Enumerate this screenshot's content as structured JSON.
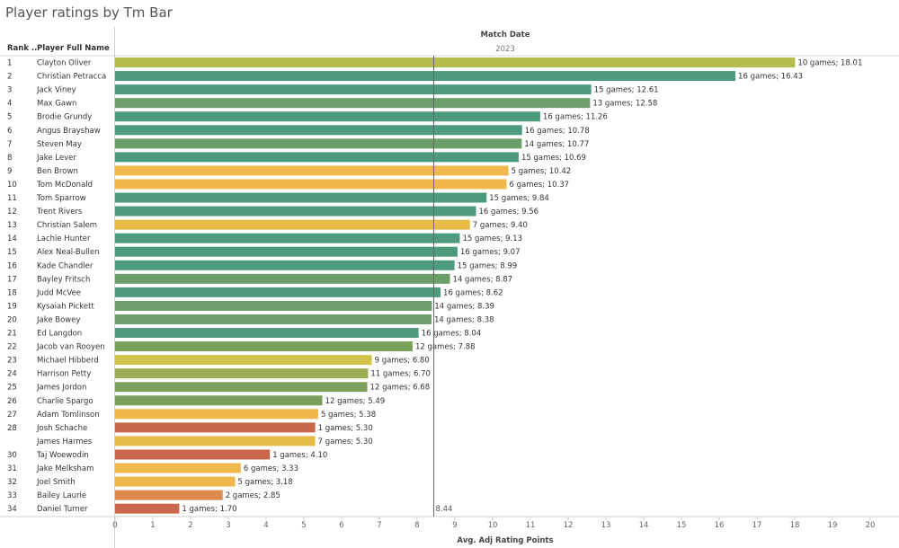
{
  "chart_data": {
    "type": "bar",
    "title": "Player ratings by Tm Bar",
    "row_header_rank": "Rank ..",
    "row_header_name": "Player Full Name",
    "column_header": "Match Date",
    "column_value": "2023",
    "xlabel": "Avg. Adj Rating Points",
    "xlim": [
      0,
      21
    ],
    "xticks": [
      0,
      1,
      2,
      3,
      4,
      5,
      6,
      7,
      8,
      9,
      10,
      11,
      12,
      13,
      14,
      15,
      16,
      17,
      18,
      19,
      20
    ],
    "reference_line": {
      "value": 8.44,
      "label": "8.44"
    },
    "rows": [
      {
        "rank": "1",
        "name": "Clayton Oliver",
        "value": 18.01,
        "label": "10 games; 18.01",
        "color": "#b5bd4c"
      },
      {
        "rank": "2",
        "name": "Christian Petracca",
        "value": 16.43,
        "label": "16 games; 16.43",
        "color": "#4e9a7c"
      },
      {
        "rank": "3",
        "name": "Jack Viney",
        "value": 12.61,
        "label": "15 games; 12.61",
        "color": "#4e9a7c"
      },
      {
        "rank": "4",
        "name": "Max Gawn",
        "value": 12.58,
        "label": "13 games; 12.58",
        "color": "#6b9e68"
      },
      {
        "rank": "5",
        "name": "Brodie Grundy",
        "value": 11.26,
        "label": "16 games; 11.26",
        "color": "#4e9a7c"
      },
      {
        "rank": "6",
        "name": "Angus Brayshaw",
        "value": 10.78,
        "label": "16 games; 10.78",
        "color": "#4e9a7c"
      },
      {
        "rank": "7",
        "name": "Steven May",
        "value": 10.77,
        "label": "14 games; 10.77",
        "color": "#6b9e68"
      },
      {
        "rank": "8",
        "name": "Jake Lever",
        "value": 10.69,
        "label": "15 games; 10.69",
        "color": "#4e9a7c"
      },
      {
        "rank": "9",
        "name": "Ben Brown",
        "value": 10.42,
        "label": "5 games; 10.42",
        "color": "#f0b74a"
      },
      {
        "rank": "10",
        "name": "Tom McDonald",
        "value": 10.37,
        "label": "6 games; 10.37",
        "color": "#f0b74a"
      },
      {
        "rank": "11",
        "name": "Tom Sparrow",
        "value": 9.84,
        "label": "15 games; 9.84",
        "color": "#4e9a7c"
      },
      {
        "rank": "12",
        "name": "Trent Rivers",
        "value": 9.56,
        "label": "16 games; 9.56",
        "color": "#4e9a7c"
      },
      {
        "rank": "13",
        "name": "Christian Salem",
        "value": 9.4,
        "label": "7 games; 9.40",
        "color": "#e6bb48"
      },
      {
        "rank": "14",
        "name": "Lachie Hunter",
        "value": 9.13,
        "label": "15 games; 9.13",
        "color": "#4e9a7c"
      },
      {
        "rank": "15",
        "name": "Alex Neal-Bullen",
        "value": 9.07,
        "label": "16 games; 9.07",
        "color": "#4e9a7c"
      },
      {
        "rank": "16",
        "name": "Kade Chandler",
        "value": 8.99,
        "label": "15 games; 8.99",
        "color": "#4e9a7c"
      },
      {
        "rank": "17",
        "name": "Bayley Fritsch",
        "value": 8.87,
        "label": "14 games; 8.87",
        "color": "#6b9e68"
      },
      {
        "rank": "18",
        "name": "Judd McVee",
        "value": 8.62,
        "label": "16 games; 8.62",
        "color": "#4e9a7c"
      },
      {
        "rank": "19",
        "name": "Kysaiah Pickett",
        "value": 8.39,
        "label": "14 games; 8.39",
        "color": "#6b9e68"
      },
      {
        "rank": "20",
        "name": "Jake Bowey",
        "value": 8.38,
        "label": "14 games; 8.38",
        "color": "#6b9e68"
      },
      {
        "rank": "21",
        "name": "Ed Langdon",
        "value": 8.04,
        "label": "16 games; 8.04",
        "color": "#4e9a7c"
      },
      {
        "rank": "22",
        "name": "Jacob van Rooyen",
        "value": 7.88,
        "label": "12 games; 7.88",
        "color": "#7ba05e"
      },
      {
        "rank": "23",
        "name": "Michael Hibberd",
        "value": 6.8,
        "label": "9 games; 6.80",
        "color": "#d2c44a"
      },
      {
        "rank": "24",
        "name": "Harrison Petty",
        "value": 6.7,
        "label": "11 games; 6.70",
        "color": "#9bb055"
      },
      {
        "rank": "25",
        "name": "James Jordon",
        "value": 6.68,
        "label": "12 games; 6.68",
        "color": "#7ba05e"
      },
      {
        "rank": "26",
        "name": "Charlie Spargo",
        "value": 5.49,
        "label": "12 games; 5.49",
        "color": "#7ba05e"
      },
      {
        "rank": "27",
        "name": "Adam Tomlinson",
        "value": 5.38,
        "label": "5 games; 5.38",
        "color": "#f0b74a"
      },
      {
        "rank": "28",
        "name": "Josh Schache",
        "value": 5.3,
        "label": "1 games; 5.30",
        "color": "#c8674c"
      },
      {
        "rank": "",
        "name": "James Harmes",
        "value": 5.3,
        "label": "7 games; 5.30",
        "color": "#e6bb48"
      },
      {
        "rank": "30",
        "name": "Taj Woewodin",
        "value": 4.1,
        "label": "1 games; 4.10",
        "color": "#c8674c"
      },
      {
        "rank": "31",
        "name": "Jake Melksham",
        "value": 3.33,
        "label": "6 games; 3.33",
        "color": "#f0b74a"
      },
      {
        "rank": "32",
        "name": "Joel Smith",
        "value": 3.18,
        "label": "5 games; 3.18",
        "color": "#f0b74a"
      },
      {
        "rank": "33",
        "name": "Bailey Laurie",
        "value": 2.85,
        "label": "2 games; 2.85",
        "color": "#dd8a4c"
      },
      {
        "rank": "34",
        "name": "Daniel Turner",
        "value": 1.7,
        "label": "1 games; 1.70",
        "color": "#c8674c"
      }
    ]
  }
}
